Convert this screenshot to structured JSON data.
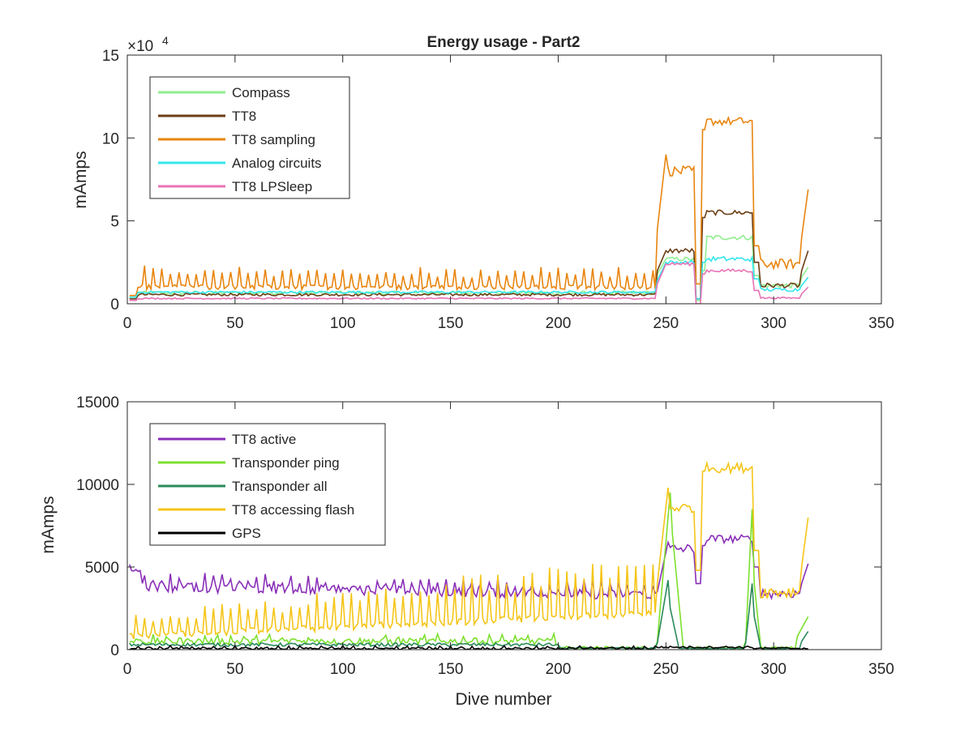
{
  "chart_data": [
    {
      "type": "line",
      "title": "Energy usage - Part2",
      "xlabel": "",
      "ylabel": "mAmps",
      "y_exponent_label": "×10",
      "y_exponent_power": "4",
      "xlim": [
        0,
        350
      ],
      "ylim": [
        0,
        150000
      ],
      "x_ticks": [
        0,
        50,
        100,
        150,
        200,
        250,
        300,
        350
      ],
      "y_ticks": [
        0,
        50000,
        100000,
        150000
      ],
      "y_tick_labels": [
        "0",
        "5",
        "10",
        "15"
      ],
      "legend_position": "top-left",
      "grid": false,
      "series": [
        {
          "name": "Compass",
          "color": "#90ee90",
          "segments": [
            {
              "from": 1,
              "to": 4,
              "base": 4000,
              "amp": 0,
              "spike_every": 0,
              "spike": 0
            },
            {
              "from": 5,
              "to": 245,
              "base": 6500,
              "amp": 1200,
              "spike_every": 0,
              "spike": 0
            },
            {
              "from": 246,
              "to": 250,
              "base": 18000,
              "ramp_to": 27000
            },
            {
              "from": 251,
              "to": 263,
              "base": 27000,
              "amp": 1200
            },
            {
              "from": 264,
              "to": 266,
              "base": 2000
            },
            {
              "from": 267,
              "to": 268,
              "base": 20000
            },
            {
              "from": 269,
              "to": 290,
              "base": 40000,
              "amp": 1500
            },
            {
              "from": 291,
              "to": 293,
              "base": 17000
            },
            {
              "from": 294,
              "to": 312,
              "base": 11000,
              "amp": 1500
            },
            {
              "from": 313,
              "to": 316,
              "base": 16000,
              "ramp_to": 22000
            }
          ]
        },
        {
          "name": "TT8",
          "color": "#6b3e16",
          "segments": [
            {
              "from": 1,
              "to": 4,
              "base": 3000
            },
            {
              "from": 5,
              "to": 245,
              "base": 5500,
              "amp": 800
            },
            {
              "from": 246,
              "to": 250,
              "base": 20000,
              "ramp_to": 32000
            },
            {
              "from": 251,
              "to": 263,
              "base": 32000,
              "amp": 1500
            },
            {
              "from": 264,
              "to": 266,
              "base": 3000
            },
            {
              "from": 267,
              "to": 268,
              "base": 52000
            },
            {
              "from": 269,
              "to": 290,
              "base": 55000,
              "amp": 1500
            },
            {
              "from": 291,
              "to": 293,
              "base": 25000
            },
            {
              "from": 294,
              "to": 312,
              "base": 11000,
              "amp": 1500
            },
            {
              "from": 313,
              "to": 316,
              "base": 20000,
              "ramp_to": 32000
            }
          ]
        },
        {
          "name": "TT8 sampling",
          "color": "#e8850f",
          "segments": [
            {
              "from": 1,
              "to": 4,
              "base": 5000
            },
            {
              "from": 5,
              "to": 245,
              "base": 10000,
              "amp": 1500,
              "spike_every": 4,
              "spike": 12000
            },
            {
              "from": 246,
              "to": 250,
              "base": 45000,
              "ramp_to": 90000
            },
            {
              "from": 251,
              "to": 263,
              "base": 80000,
              "amp": 3000
            },
            {
              "from": 264,
              "to": 266,
              "base": 12000
            },
            {
              "from": 267,
              "to": 268,
              "base": 105000
            },
            {
              "from": 269,
              "to": 290,
              "base": 110000,
              "amp": 2500
            },
            {
              "from": 291,
              "to": 293,
              "base": 35000
            },
            {
              "from": 294,
              "to": 312,
              "base": 24000,
              "amp": 3000
            },
            {
              "from": 313,
              "to": 316,
              "base": 40000,
              "ramp_to": 69000
            }
          ]
        },
        {
          "name": "Analog circuits",
          "color": "#35e6ee",
          "segments": [
            {
              "from": 1,
              "to": 4,
              "base": 4000
            },
            {
              "from": 5,
              "to": 245,
              "base": 7000,
              "amp": 700
            },
            {
              "from": 246,
              "to": 250,
              "base": 14000,
              "ramp_to": 25000
            },
            {
              "from": 251,
              "to": 263,
              "base": 25000,
              "amp": 1000
            },
            {
              "from": 264,
              "to": 266,
              "base": 3000
            },
            {
              "from": 267,
              "to": 268,
              "base": 25000
            },
            {
              "from": 269,
              "to": 290,
              "base": 27000,
              "amp": 1500
            },
            {
              "from": 291,
              "to": 293,
              "base": 15000
            },
            {
              "from": 294,
              "to": 312,
              "base": 8500,
              "amp": 1000
            },
            {
              "from": 313,
              "to": 316,
              "base": 11000,
              "ramp_to": 16000
            }
          ]
        },
        {
          "name": "TT8 LPSleep",
          "color": "#e872b6",
          "segments": [
            {
              "from": 1,
              "to": 4,
              "base": 2000
            },
            {
              "from": 5,
              "to": 245,
              "base": 3200,
              "amp": 400
            },
            {
              "from": 246,
              "to": 250,
              "base": 12000,
              "ramp_to": 24000
            },
            {
              "from": 251,
              "to": 263,
              "base": 24000,
              "amp": 1000
            },
            {
              "from": 264,
              "to": 266,
              "base": 0
            },
            {
              "from": 267,
              "to": 268,
              "base": 18000
            },
            {
              "from": 269,
              "to": 290,
              "base": 20000,
              "amp": 1000
            },
            {
              "from": 291,
              "to": 293,
              "base": 8000
            },
            {
              "from": 294,
              "to": 312,
              "base": 3500,
              "amp": 500
            },
            {
              "from": 313,
              "to": 316,
              "base": 6000,
              "ramp_to": 10000
            }
          ]
        }
      ]
    },
    {
      "type": "line",
      "title": "",
      "xlabel": "Dive number",
      "ylabel": "mAmps",
      "xlim": [
        0,
        350
      ],
      "ylim": [
        0,
        15000
      ],
      "x_ticks": [
        0,
        50,
        100,
        150,
        200,
        250,
        300,
        350
      ],
      "y_ticks": [
        0,
        5000,
        10000,
        15000
      ],
      "y_tick_labels": [
        "0",
        "5000",
        "10000",
        "15000"
      ],
      "legend_position": "top-left",
      "grid": false,
      "series": [
        {
          "name": "TT8 active",
          "color": "#8a2fb8",
          "segments": [
            {
              "from": 1,
              "to": 6,
              "base": 5000,
              "amp": 300
            },
            {
              "from": 7,
              "to": 245,
              "base": 3800,
              "amp": 300,
              "spike_every": 4,
              "spike": 700,
              "trend_to": 3300
            },
            {
              "from": 246,
              "to": 251,
              "base": 3500,
              "ramp_to": 6500
            },
            {
              "from": 252,
              "to": 263,
              "base": 6100,
              "amp": 300
            },
            {
              "from": 264,
              "to": 266,
              "base": 4000
            },
            {
              "from": 267,
              "to": 268,
              "base": 6300
            },
            {
              "from": 269,
              "to": 290,
              "base": 6700,
              "amp": 250
            },
            {
              "from": 291,
              "to": 293,
              "base": 5000
            },
            {
              "from": 294,
              "to": 312,
              "base": 3400,
              "amp": 300
            },
            {
              "from": 313,
              "to": 316,
              "base": 4000,
              "ramp_to": 5200
            }
          ]
        },
        {
          "name": "Transponder ping",
          "color": "#7ce02e",
          "segments": [
            {
              "from": 1,
              "to": 200,
              "base": 500,
              "amp": 200,
              "spike_every": 6,
              "spike": 300
            },
            {
              "from": 201,
              "to": 245,
              "base": 120,
              "amp": 80
            },
            {
              "from": 246,
              "to": 252,
              "base": 500,
              "ramp_to": 9500
            },
            {
              "from": 253,
              "to": 258,
              "base": 7000,
              "ramp_to": 200
            },
            {
              "from": 259,
              "to": 286,
              "base": 100,
              "amp": 80
            },
            {
              "from": 287,
              "to": 290,
              "base": 500,
              "ramp_to": 8500
            },
            {
              "from": 291,
              "to": 294,
              "base": 4000,
              "ramp_to": 200
            },
            {
              "from": 295,
              "to": 310,
              "base": 100,
              "amp": 80
            },
            {
              "from": 311,
              "to": 316,
              "base": 800,
              "ramp_to": 2000
            }
          ]
        },
        {
          "name": "Transponder all",
          "color": "#2a8a5a",
          "segments": [
            {
              "from": 1,
              "to": 200,
              "base": 300,
              "amp": 100
            },
            {
              "from": 201,
              "to": 245,
              "base": 80,
              "amp": 40
            },
            {
              "from": 246,
              "to": 251,
              "base": 400,
              "ramp_to": 4200
            },
            {
              "from": 252,
              "to": 256,
              "base": 2500,
              "ramp_to": 100
            },
            {
              "from": 257,
              "to": 286,
              "base": 60,
              "amp": 40
            },
            {
              "from": 287,
              "to": 290,
              "base": 400,
              "ramp_to": 4000
            },
            {
              "from": 291,
              "to": 294,
              "base": 2000,
              "ramp_to": 100
            },
            {
              "from": 295,
              "to": 312,
              "base": 60,
              "amp": 40
            },
            {
              "from": 313,
              "to": 316,
              "base": 500,
              "ramp_to": 1100
            }
          ]
        },
        {
          "name": "TT8 accessing flash",
          "color": "#f5c518",
          "segments": [
            {
              "from": 1,
              "to": 245,
              "base": 800,
              "amp": 200,
              "spike_every": 4,
              "spike": 1200,
              "trend_to": 2200,
              "spike_trend_to": 3500
            },
            {
              "from": 246,
              "to": 251,
              "base": 4000,
              "ramp_to": 9800
            },
            {
              "from": 252,
              "to": 263,
              "base": 8600,
              "amp": 300
            },
            {
              "from": 264,
              "to": 266,
              "base": 4800
            },
            {
              "from": 267,
              "to": 268,
              "base": 10800
            },
            {
              "from": 269,
              "to": 290,
              "base": 11000,
              "amp": 300
            },
            {
              "from": 291,
              "to": 293,
              "base": 6000
            },
            {
              "from": 294,
              "to": 312,
              "base": 3500,
              "amp": 400
            },
            {
              "from": 313,
              "to": 316,
              "base": 5000,
              "ramp_to": 8000
            }
          ]
        },
        {
          "name": "GPS",
          "color": "#000000",
          "segments": [
            {
              "from": 1,
              "to": 245,
              "base": 60,
              "amp": 60,
              "spike_every": 5,
              "spike": 150
            },
            {
              "from": 246,
              "to": 290,
              "base": 150,
              "amp": 60
            },
            {
              "from": 291,
              "to": 316,
              "base": 80,
              "amp": 60
            }
          ]
        }
      ]
    }
  ]
}
